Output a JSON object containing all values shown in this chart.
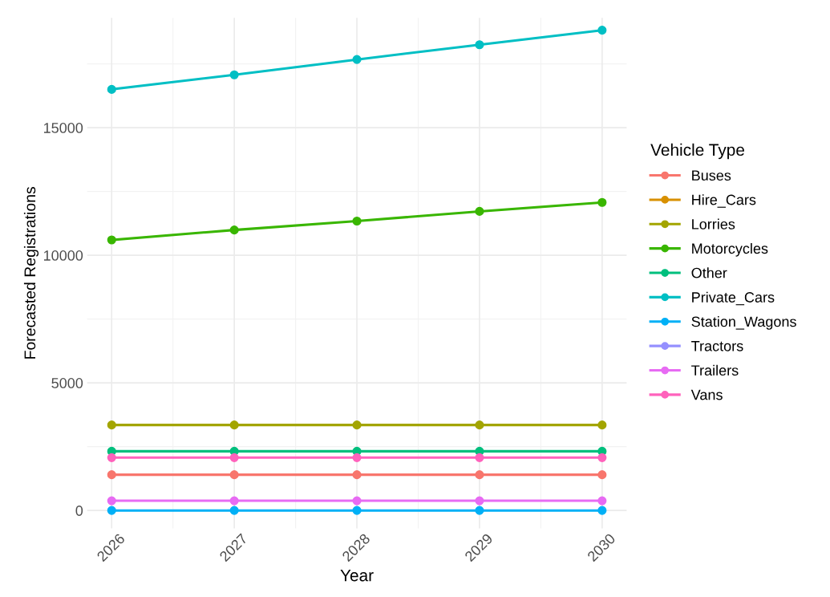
{
  "chart_data": {
    "type": "line",
    "xlabel": "Year",
    "ylabel": "Forecasted Registrations",
    "legend_title": "Vehicle Type",
    "x": [
      2026,
      2027,
      2028,
      2029,
      2030
    ],
    "series": [
      {
        "name": "Buses",
        "color": "#f8766d",
        "values": [
          1400,
          1400,
          1400,
          1400,
          1400
        ]
      },
      {
        "name": "Hire_Cars",
        "color": "#d89000",
        "values": [
          null,
          null,
          null,
          null,
          null
        ]
      },
      {
        "name": "Lorries",
        "color": "#a3a500",
        "values": [
          3350,
          3350,
          3350,
          3350,
          3350
        ]
      },
      {
        "name": "Motorcycles",
        "color": "#39b600",
        "values": [
          10600,
          10990,
          11340,
          11720,
          12070
        ]
      },
      {
        "name": "Other",
        "color": "#00bf7d",
        "values": [
          2320,
          2320,
          2320,
          2320,
          2320
        ]
      },
      {
        "name": "Private_Cars",
        "color": "#00bfc4",
        "values": [
          16500,
          17070,
          17670,
          18250,
          18820
        ]
      },
      {
        "name": "Station_Wagons",
        "color": "#00b0f6",
        "values": [
          0,
          0,
          0,
          0,
          0
        ]
      },
      {
        "name": "Tractors",
        "color": "#9590ff",
        "values": [
          null,
          null,
          null,
          null,
          null
        ]
      },
      {
        "name": "Trailers",
        "color": "#e76bf3",
        "values": [
          380,
          380,
          380,
          380,
          380
        ]
      },
      {
        "name": "Vans",
        "color": "#ff62bc",
        "values": [
          2070,
          2070,
          2070,
          2070,
          2070
        ]
      }
    ],
    "xlim": [
      2025.8,
      2030.2
    ],
    "xticks": [
      2026,
      2027,
      2028,
      2029,
      2030
    ],
    "ylim": [
      -700,
      19300
    ],
    "yticks": [
      0,
      5000,
      10000,
      15000
    ],
    "grid": true,
    "legend": "right",
    "marker": "circle",
    "line_style": "solid"
  }
}
